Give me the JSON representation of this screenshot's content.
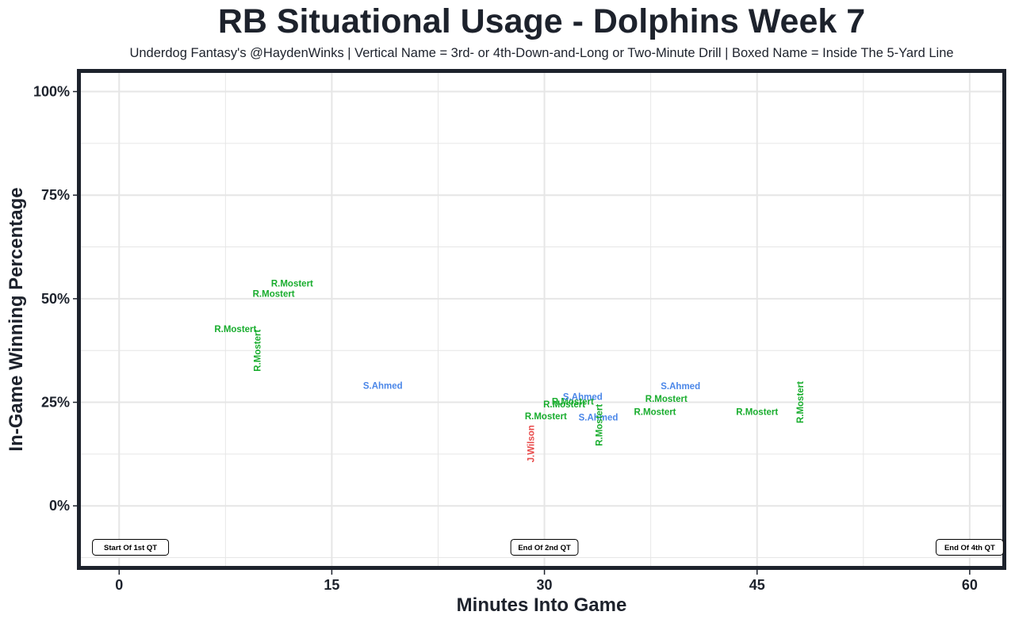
{
  "chart_data": {
    "type": "scatter",
    "title": "RB Situational Usage - Dolphins Week 7",
    "subtitle": "Underdog Fantasy's @HaydenWinks | Vertical Name = 3rd- or 4th-Down-and-Long or Two-Minute Drill | Boxed Name = Inside The 5-Yard Line",
    "xlabel": "Minutes Into Game",
    "ylabel": "In-Game Winning Percentage",
    "xlim": [
      -2.7,
      62.3
    ],
    "ylim": [
      -0.145,
      1.045
    ],
    "x_ticks": [
      0,
      15,
      30,
      45,
      60
    ],
    "x_tick_labels": [
      "0",
      "15",
      "30",
      "45",
      "60"
    ],
    "y_ticks": [
      0,
      0.25,
      0.5,
      0.75,
      1.0
    ],
    "y_tick_labels": [
      "0%",
      "25%",
      "50%",
      "75%",
      "100%"
    ],
    "grid": true,
    "colors": {
      "R.Mostert": "#19ad2e",
      "S.Ahmed": "#4a86e8",
      "J.Wilson": "#e84a4a",
      "frame": "#1d222c",
      "grid": "#e6e6e6"
    },
    "points": [
      {
        "x": 12.2,
        "y": 0.535,
        "label": "R.Mostert",
        "vertical": false
      },
      {
        "x": 10.9,
        "y": 0.51,
        "label": "R.Mostert",
        "vertical": false
      },
      {
        "x": 8.2,
        "y": 0.425,
        "label": "R.Mostert",
        "vertical": false
      },
      {
        "x": 9.8,
        "y": 0.375,
        "label": "R.Mostert",
        "vertical": true
      },
      {
        "x": 18.6,
        "y": 0.288,
        "label": "S.Ahmed",
        "vertical": false
      },
      {
        "x": 29.1,
        "y": 0.15,
        "label": "J.Wilson",
        "vertical": true
      },
      {
        "x": 30.1,
        "y": 0.215,
        "label": "R.Mostert",
        "vertical": false
      },
      {
        "x": 31.4,
        "y": 0.243,
        "label": "R.Mostert",
        "vertical": false
      },
      {
        "x": 32.0,
        "y": 0.25,
        "label": "R.Mostert",
        "vertical": false
      },
      {
        "x": 32.7,
        "y": 0.262,
        "label": "S.Ahmed",
        "vertical": false
      },
      {
        "x": 33.8,
        "y": 0.212,
        "label": "S.Ahmed",
        "vertical": false
      },
      {
        "x": 33.9,
        "y": 0.195,
        "label": "R.Mostert",
        "vertical": true
      },
      {
        "x": 37.8,
        "y": 0.225,
        "label": "R.Mostert",
        "vertical": false
      },
      {
        "x": 38.6,
        "y": 0.257,
        "label": "R.Mostert",
        "vertical": false
      },
      {
        "x": 39.6,
        "y": 0.287,
        "label": "S.Ahmed",
        "vertical": false
      },
      {
        "x": 45.0,
        "y": 0.225,
        "label": "R.Mostert",
        "vertical": false
      },
      {
        "x": 48.1,
        "y": 0.25,
        "label": "R.Mostert",
        "vertical": true
      }
    ],
    "annotations": [
      {
        "x": 0.8,
        "y": -0.1,
        "label": "Start Of 1st QT"
      },
      {
        "x": 30.0,
        "y": -0.1,
        "label": "End Of 2nd QT"
      },
      {
        "x": 60.0,
        "y": -0.1,
        "label": "End Of 4th QT"
      }
    ]
  }
}
